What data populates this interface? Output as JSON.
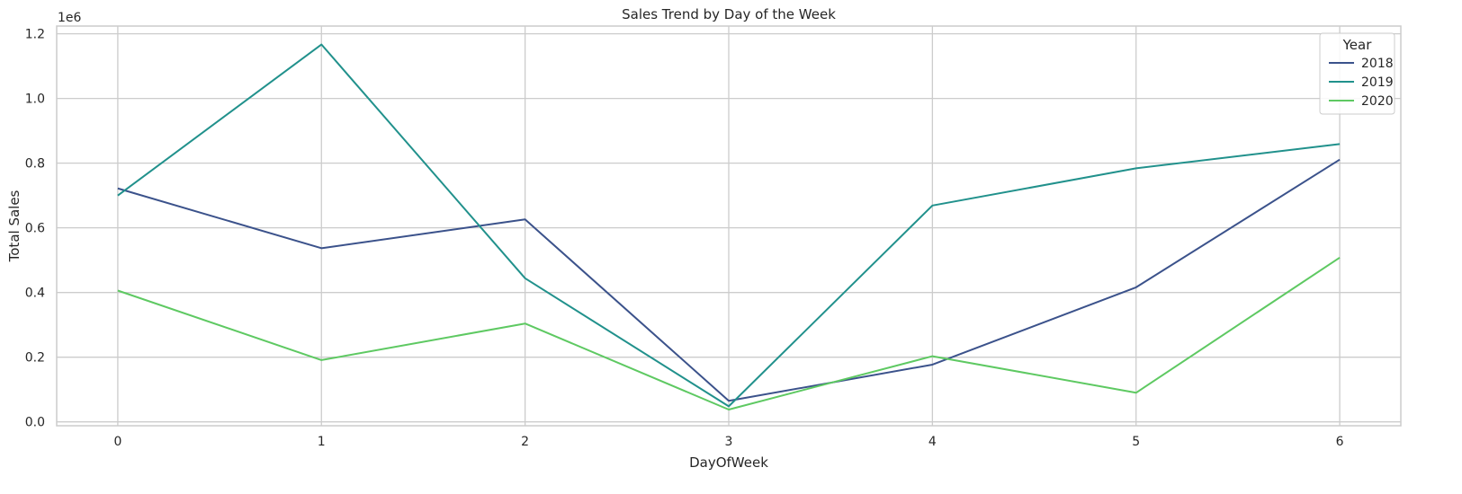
{
  "chart_data": {
    "type": "line",
    "title": "Sales Trend by Day of the Week",
    "xlabel": "DayOfWeek",
    "ylabel": "Total Sales",
    "y_offset_label": "1e6",
    "x": [
      0,
      1,
      2,
      3,
      4,
      5,
      6
    ],
    "xlim": [
      -0.3,
      6.3
    ],
    "ylim": [
      -0.012,
      1.224
    ],
    "yticks": [
      0.0,
      0.2,
      0.4,
      0.6,
      0.8,
      1.0,
      1.2
    ],
    "ytick_labels": [
      "0.0",
      "0.2",
      "0.4",
      "0.6",
      "0.8",
      "1.0",
      "1.2"
    ],
    "xtick_labels": [
      "0",
      "1",
      "2",
      "3",
      "4",
      "5",
      "6"
    ],
    "grid": true,
    "legend": {
      "title": "Year",
      "placement": "top-right"
    },
    "series": [
      {
        "name": "2018",
        "color": "#3b528b",
        "values": [
          0.722,
          0.537,
          0.626,
          0.065,
          0.177,
          0.416,
          0.811
        ]
      },
      {
        "name": "2019",
        "color": "#21918c",
        "values": [
          0.7,
          1.167,
          0.444,
          0.048,
          0.669,
          0.784,
          0.859
        ]
      },
      {
        "name": "2020",
        "color": "#5ec962",
        "values": [
          0.406,
          0.191,
          0.304,
          0.038,
          0.203,
          0.09,
          0.508
        ]
      }
    ]
  }
}
